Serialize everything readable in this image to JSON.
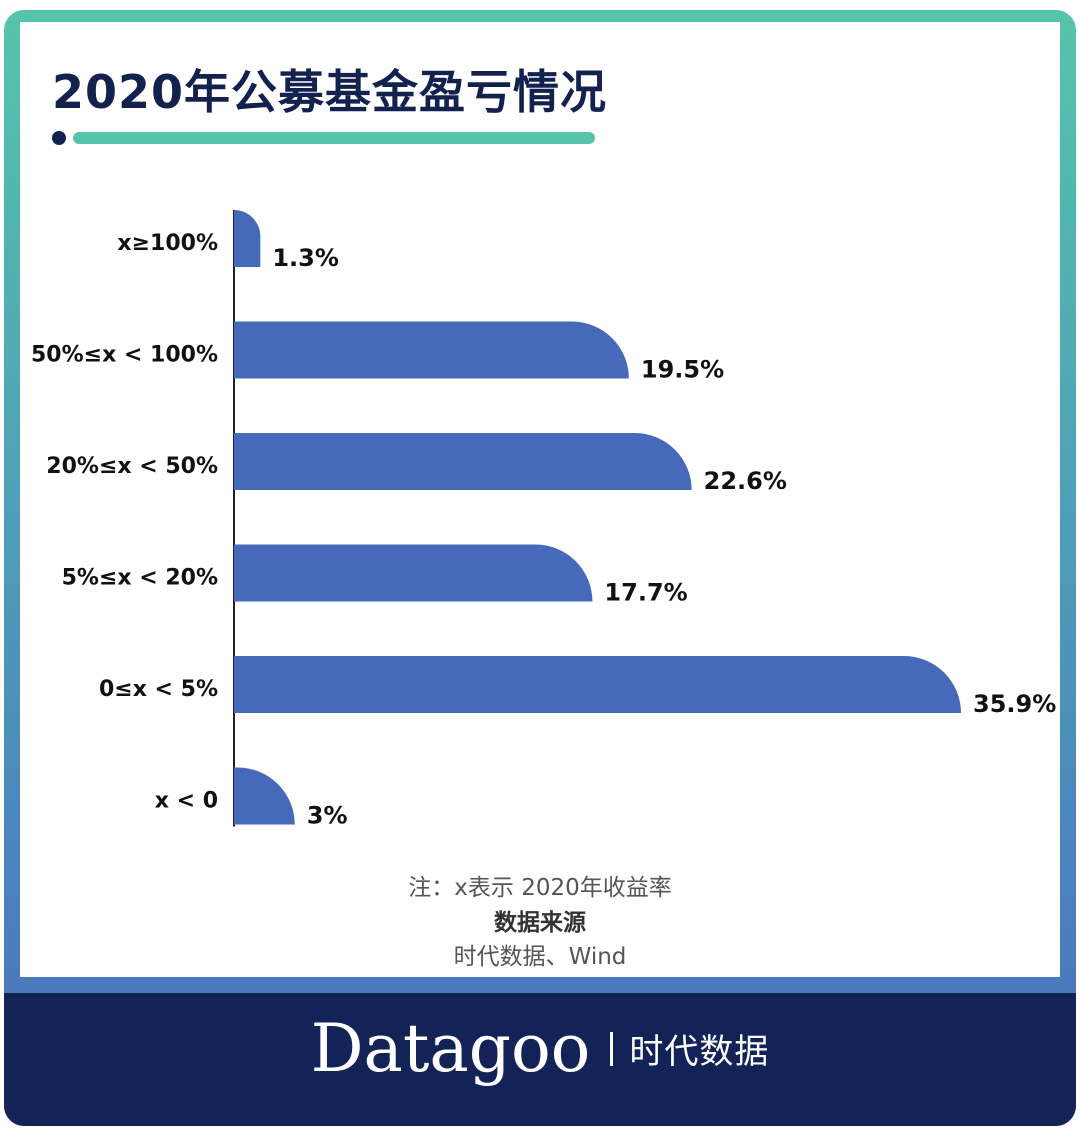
{
  "title": "2020年公募基金盈亏情况",
  "colors": {
    "bar": "#4669b9",
    "title": "#13214f",
    "accent": "#55c4aa",
    "footer": "#132257"
  },
  "chart_data": {
    "type": "bar",
    "orientation": "horizontal",
    "categories": [
      "x≥100%",
      "50%≤x < 100%",
      "20%≤x < 50%",
      "5%≤x < 20%",
      "0≤x < 5%",
      "x < 0"
    ],
    "values": [
      1.3,
      19.5,
      22.6,
      17.7,
      35.9,
      3
    ],
    "value_labels": [
      "1.3%",
      "19.5%",
      "22.6%",
      "17.7%",
      "35.9%",
      "3%"
    ],
    "xlabel": "",
    "ylabel": "",
    "grid": false
  },
  "notes": {
    "note": "注：x表示 2020年收益率",
    "source_heading": "数据来源",
    "source": "时代数据、Wind"
  },
  "brand": {
    "name": "Datagoo",
    "cn": "时代数据"
  }
}
